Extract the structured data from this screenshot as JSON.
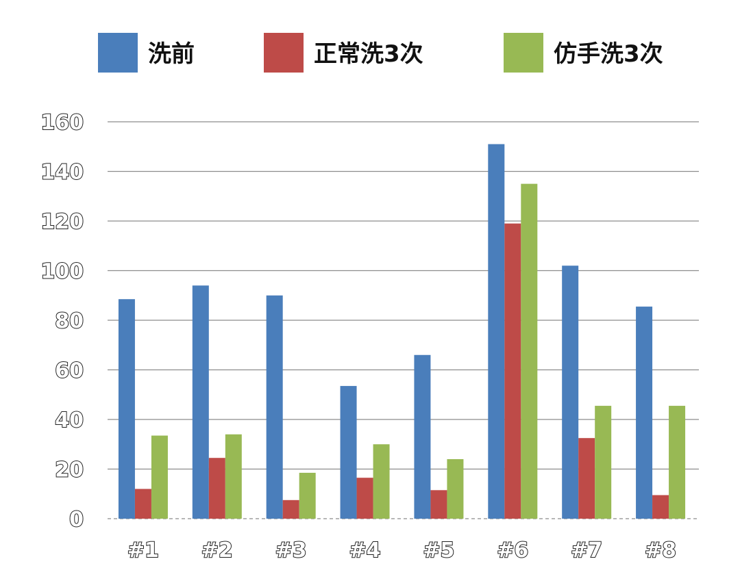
{
  "chart_data": {
    "type": "bar",
    "categories": [
      "#1",
      "#2",
      "#3",
      "#4",
      "#5",
      "#6",
      "#7",
      "#8"
    ],
    "series": [
      {
        "name": "洗前",
        "color": "#4a7ebb",
        "values": [
          88.5,
          94,
          90,
          53.5,
          66,
          151,
          102,
          85.5
        ]
      },
      {
        "name": "正常洗3次",
        "color": "#be4b48",
        "values": [
          12,
          24.5,
          7.5,
          16.5,
          11.5,
          119,
          32.5,
          9.5
        ]
      },
      {
        "name": "仿手洗3次",
        "color": "#98b954",
        "values": [
          33.5,
          34,
          18.5,
          30,
          24,
          135,
          45.5,
          45.5
        ]
      }
    ],
    "ylim": [
      0,
      160
    ],
    "yticks": [
      "0",
      "20",
      "40",
      "60",
      "80",
      "100",
      "120",
      "140",
      "160"
    ],
    "grid": true,
    "legend_position": "top"
  }
}
